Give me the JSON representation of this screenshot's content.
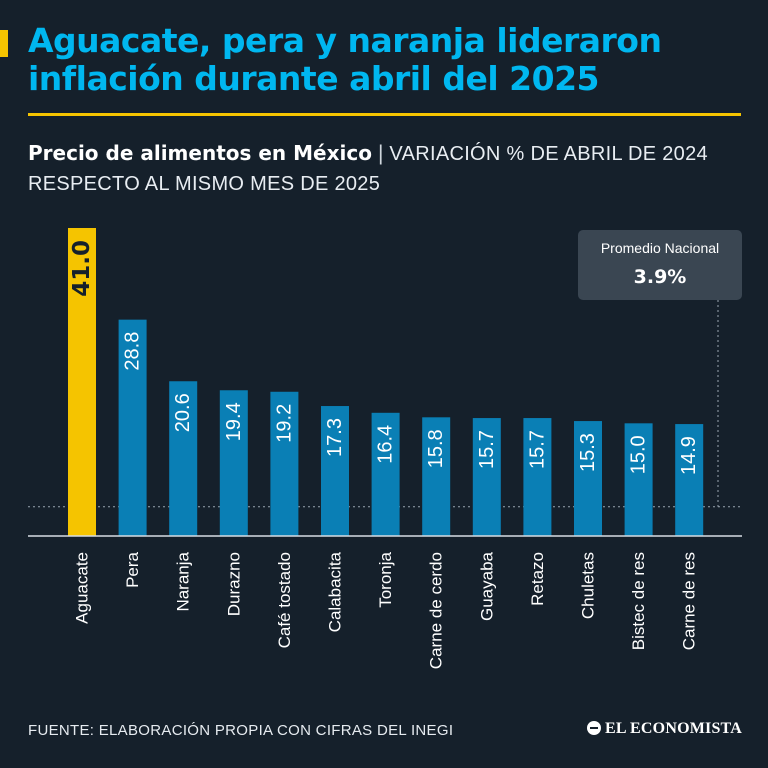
{
  "header": {
    "title": "Aguacate, pera y naranja lideraron inflación durante abril del 2025",
    "subtitle_bold": "Precio de alimentos en México",
    "subtitle_separator": "|",
    "subtitle_light": "VARIACIÓN % DE ABRIL DE 2024 RESPECTO AL MISMO MES DE 2025"
  },
  "colors": {
    "background": "#15202b",
    "title": "#00b7f0",
    "highlight_bar": "#f5c400",
    "bar": "#0a7fb5",
    "callout_bg": "#3a4652"
  },
  "callout": {
    "label": "Promedio Nacional",
    "value": "3.9%"
  },
  "chart_data": {
    "type": "bar",
    "categories": [
      "Aguacate",
      "Pera",
      "Naranja",
      "Durazno",
      "Café tostado",
      "Calabacita",
      "Toronja",
      "Carne de cerdo",
      "Guayaba",
      "Retazo",
      "Chuletas",
      "Bistec de res",
      "Carne de res"
    ],
    "values": [
      41.0,
      28.8,
      20.6,
      19.4,
      19.2,
      17.3,
      16.4,
      15.8,
      15.7,
      15.7,
      15.3,
      15.0,
      14.9
    ],
    "value_labels": [
      "41.0",
      "28.8",
      "20.6",
      "19.4",
      "19.2",
      "17.3",
      "16.4",
      "15.8",
      "15.7",
      "15.7",
      "15.3",
      "15.0",
      "14.9"
    ],
    "highlight_index": 0,
    "reference_line": 3.9,
    "ylim": [
      0,
      41
    ],
    "grid": false,
    "xlabel": "",
    "ylabel": ""
  },
  "footer": {
    "source": "FUENTE: ELABORACIÓN PROPIA CON CIFRAS DEL INEGI",
    "brand": "EL ECONOMISTA"
  }
}
